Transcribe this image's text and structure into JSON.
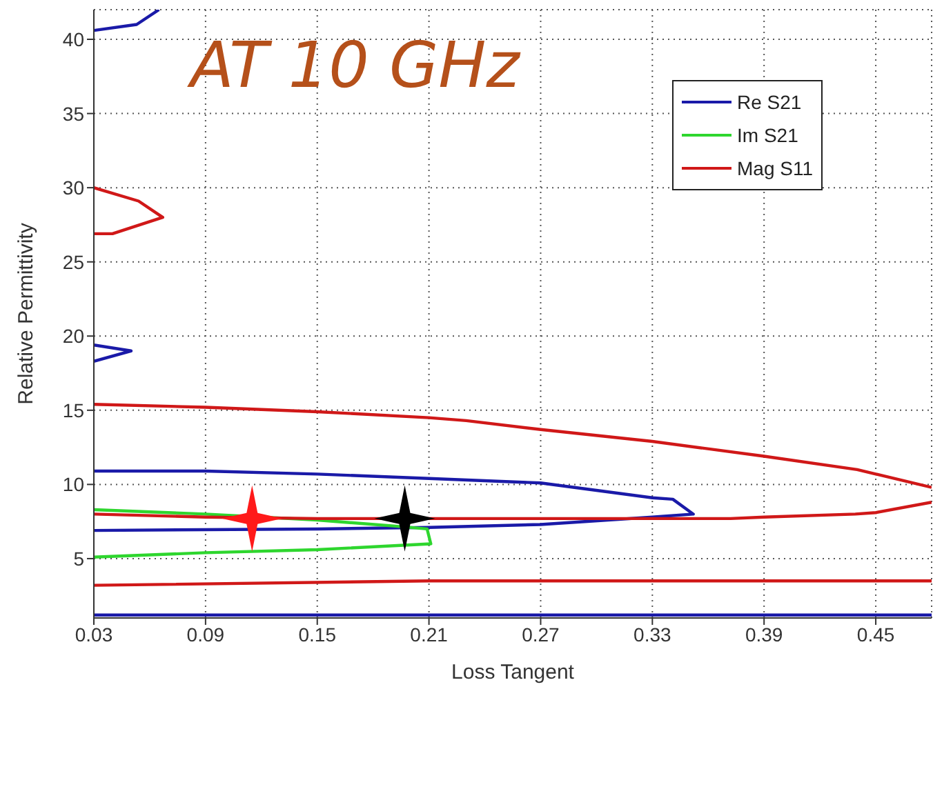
{
  "chart_data": {
    "type": "line",
    "title": "AT 10 GHz",
    "xlabel": "Loss Tangent",
    "ylabel": "Relative Permittivity",
    "xlim": [
      0.03,
      0.48
    ],
    "ylim": [
      1,
      42
    ],
    "xticks": [
      0.03,
      0.09,
      0.15,
      0.21,
      0.27,
      0.33,
      0.39,
      0.45
    ],
    "yticks": [
      5,
      10,
      15,
      20,
      25,
      30,
      35,
      40
    ],
    "grid": true,
    "legend": "top right",
    "line_style": "solid",
    "series": [
      {
        "type": "line",
        "name": "Re S21",
        "color": "#1a1aa8",
        "x": [
          0.03,
          0.09,
          0.15,
          0.21,
          0.27,
          0.33,
          0.341,
          0.352,
          0.33,
          0.27,
          0.21,
          0.15,
          0.03
        ],
        "values": [
          10.9,
          10.9,
          10.7,
          10.4,
          10.1,
          9.1,
          9.0,
          8.0,
          7.8,
          7.3,
          7.1,
          7.0,
          6.9
        ]
      },
      {
        "type": "line",
        "color": "#1a1aa8",
        "x": [
          0.03,
          0.053,
          0.065
        ],
        "values": [
          40.6,
          41.0,
          42
        ]
      },
      {
        "type": "line",
        "color": "#1a1aa8",
        "x": [
          0.03,
          0.05,
          0.03
        ],
        "values": [
          19.4,
          19.0,
          18.3
        ]
      },
      {
        "type": "line",
        "color": "#1a1aa8",
        "x": [
          0.03,
          0.48
        ],
        "values": [
          1.2,
          1.2
        ]
      },
      {
        "type": "line",
        "name": "Im S21",
        "color": "#2ed62e",
        "x": [
          0.03,
          0.09,
          0.15,
          0.191,
          0.209,
          0.211,
          0.15,
          0.09,
          0.03
        ],
        "values": [
          8.3,
          8.0,
          7.6,
          7.2,
          7.0,
          6.0,
          5.6,
          5.4,
          5.1
        ]
      },
      {
        "type": "line",
        "name": "Mag S11",
        "color": "#d01818",
        "x": [
          0.03,
          0.09,
          0.15,
          0.21,
          0.27,
          0.33,
          0.372,
          0.39,
          0.439,
          0.45,
          0.48
        ],
        "values": [
          8.0,
          7.8,
          7.7,
          7.7,
          7.7,
          7.7,
          7.7,
          7.8,
          8.0,
          8.1,
          8.8
        ]
      },
      {
        "type": "line",
        "color": "#d01818",
        "x": [
          0.03,
          0.09,
          0.15,
          0.21,
          0.23,
          0.27,
          0.33,
          0.39,
          0.44,
          0.45,
          0.48
        ],
        "values": [
          15.4,
          15.2,
          14.9,
          14.5,
          14.3,
          13.7,
          12.9,
          11.9,
          11.0,
          10.7,
          9.8
        ]
      },
      {
        "type": "line",
        "color": "#d01818",
        "x": [
          0.03,
          0.054,
          0.067,
          0.04,
          0.03
        ],
        "values": [
          30,
          29.1,
          28.0,
          26.9,
          26.9
        ]
      },
      {
        "type": "line",
        "color": "#d01818",
        "x": [
          0.03,
          0.21,
          0.33,
          0.44,
          0.48
        ],
        "values": [
          3.2,
          3.5,
          3.5,
          3.5,
          3.5
        ]
      },
      {
        "type": "scatter",
        "marker": "star",
        "x": [
          0.115,
          0.197
        ],
        "values": [
          7.7,
          7.7
        ],
        "colors": [
          "#ff1a1a",
          "#000000"
        ]
      }
    ]
  }
}
